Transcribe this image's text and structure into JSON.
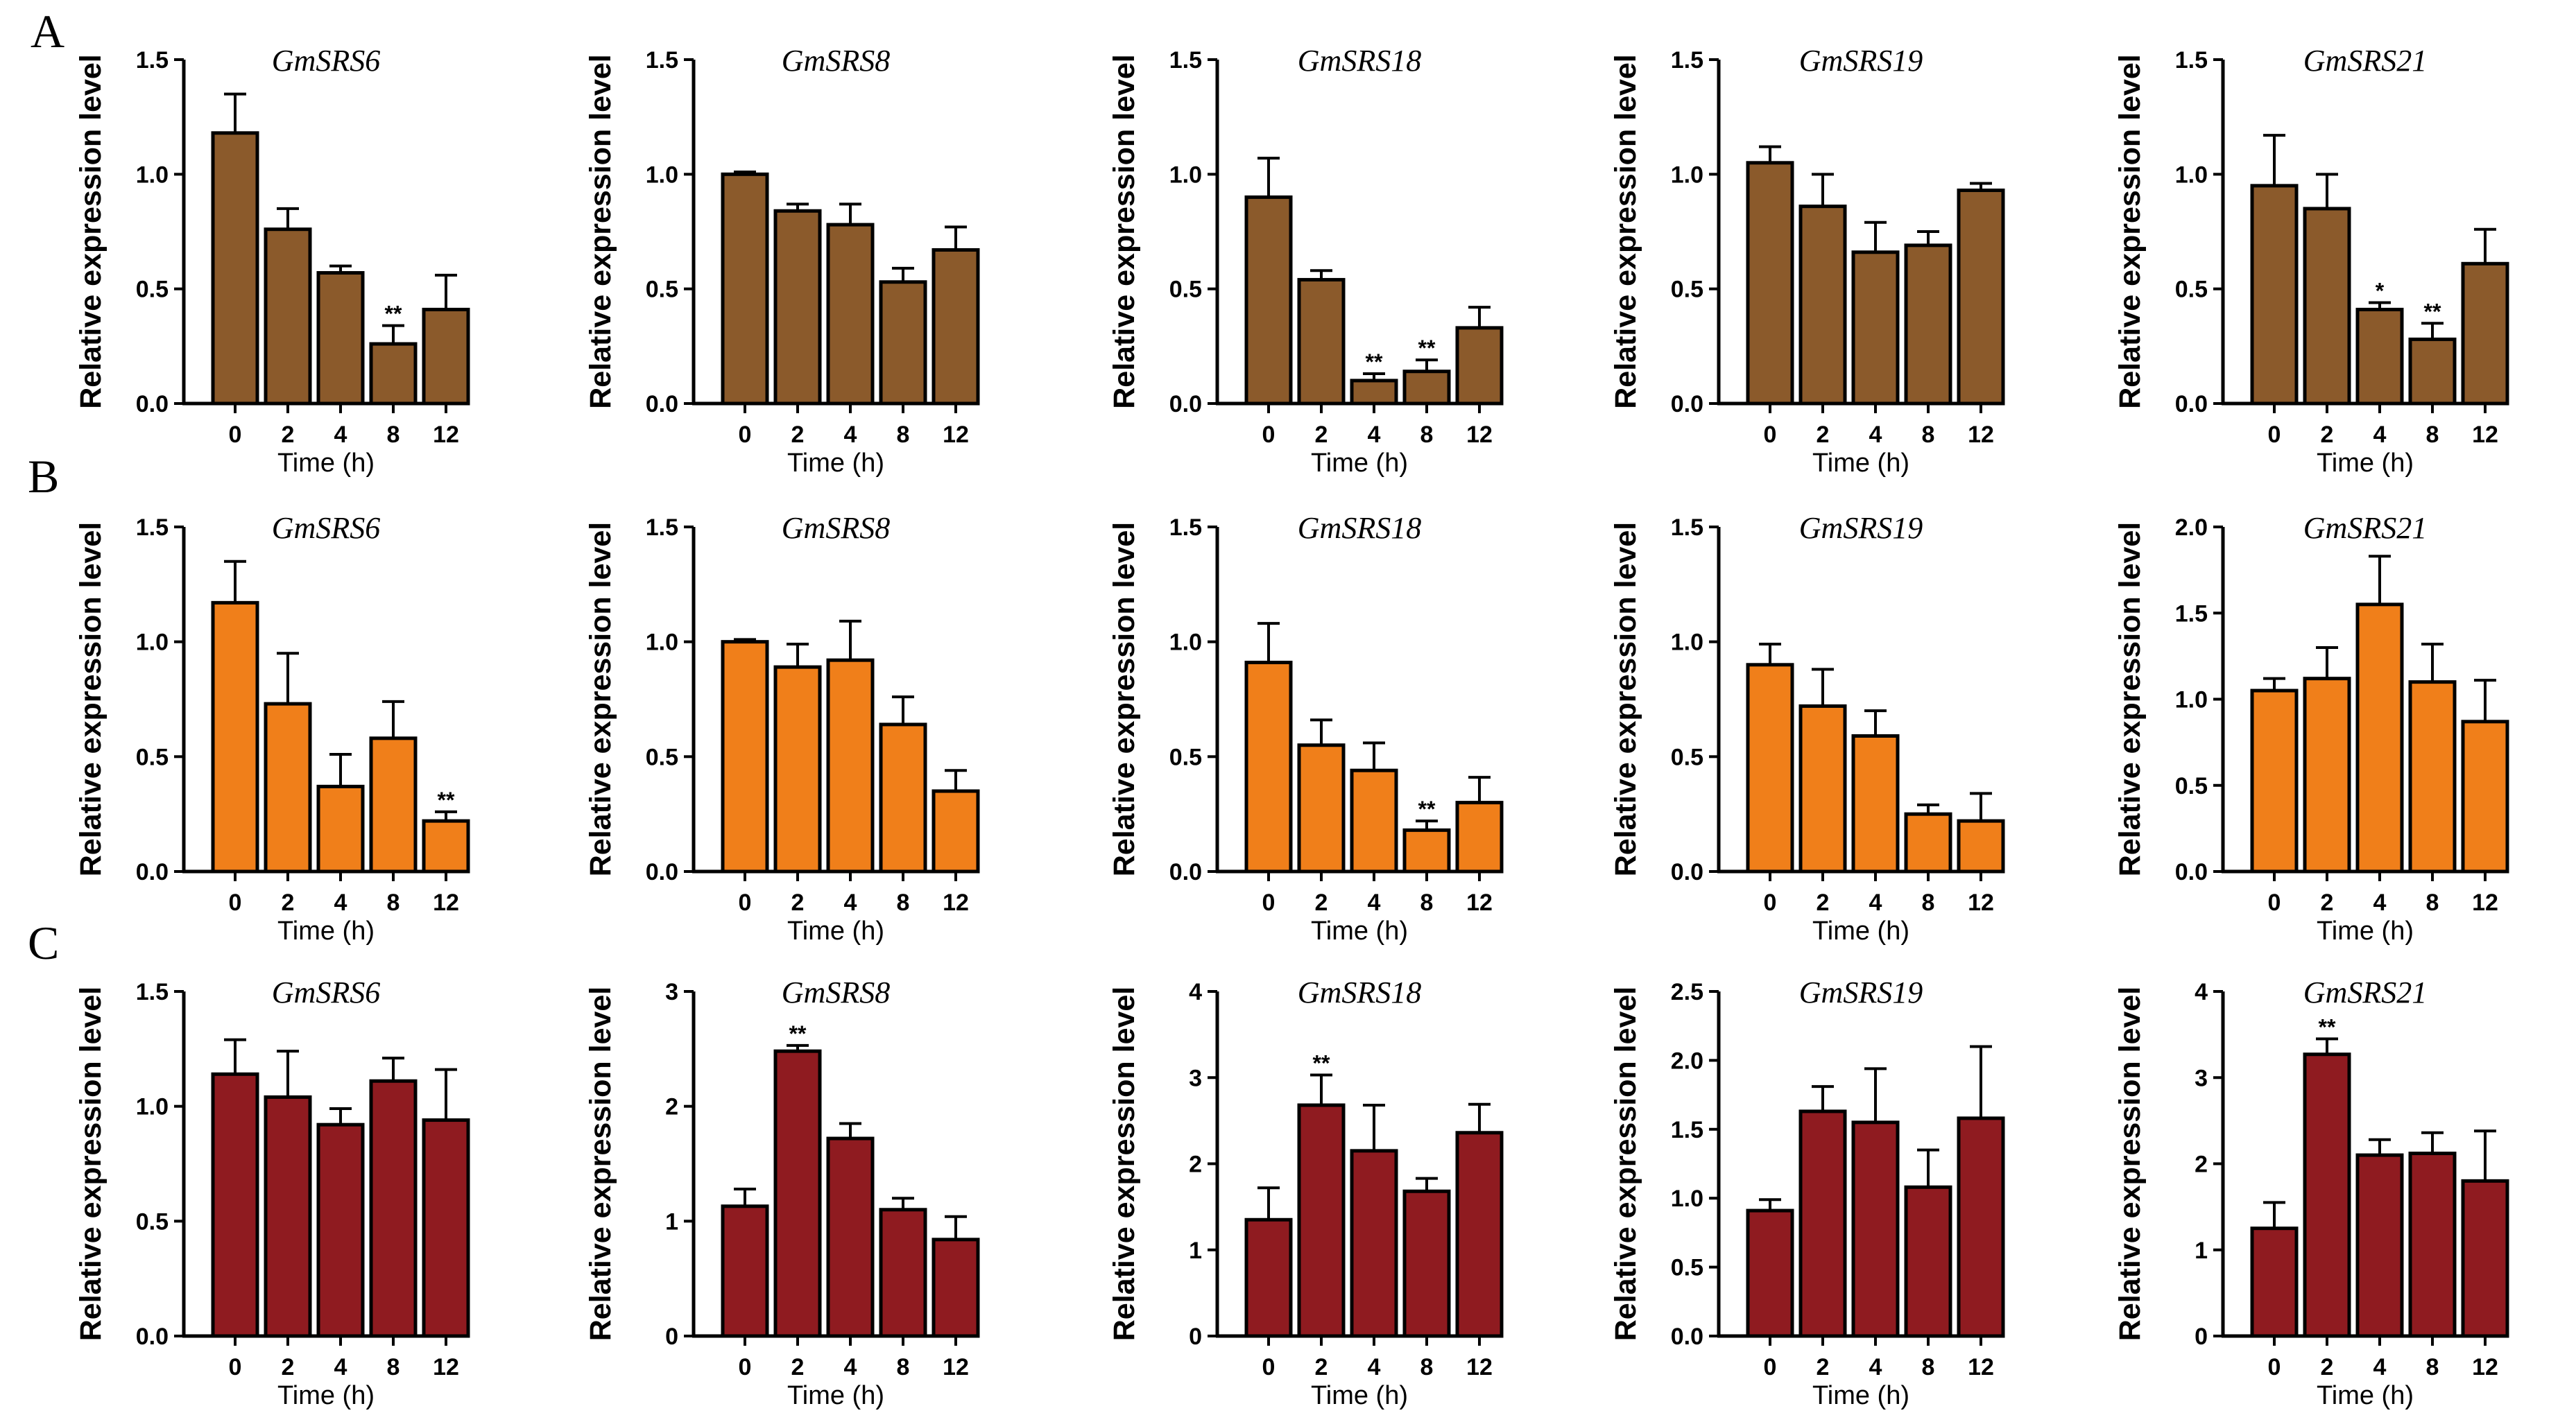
{
  "figure": {
    "panels": [
      "A",
      "B",
      "C"
    ],
    "colors": {
      "A": "#8B5A2B",
      "B": "#F07F1A",
      "C": "#8F1B20"
    }
  },
  "chart_data": [
    {
      "type": "bar",
      "panel": "A",
      "title": "GmSRS6",
      "xlabel": "Time (h)",
      "ylabel": "Relative expression level",
      "categories": [
        "0",
        "2",
        "4",
        "8",
        "12"
      ],
      "values": [
        1.18,
        0.76,
        0.57,
        0.26,
        0.41
      ],
      "errors": [
        0.17,
        0.09,
        0.03,
        0.08,
        0.15
      ],
      "significance": [
        "",
        "",
        "",
        "**",
        ""
      ],
      "ylim": [
        0,
        1.5
      ],
      "yticks": [
        "0.0",
        "0.5",
        "1.0",
        "1.5"
      ]
    },
    {
      "type": "bar",
      "panel": "A",
      "title": "GmSRS8",
      "xlabel": "Time (h)",
      "ylabel": "Relative expression level",
      "categories": [
        "0",
        "2",
        "4",
        "8",
        "12"
      ],
      "values": [
        1.0,
        0.84,
        0.78,
        0.53,
        0.67
      ],
      "errors": [
        0.01,
        0.03,
        0.09,
        0.06,
        0.1
      ],
      "significance": [
        "",
        "",
        "",
        "",
        ""
      ],
      "ylim": [
        0,
        1.5
      ],
      "yticks": [
        "0.0",
        "0.5",
        "1.0",
        "1.5"
      ]
    },
    {
      "type": "bar",
      "panel": "A",
      "title": "GmSRS18",
      "xlabel": "Time (h)",
      "ylabel": "Relative expression level",
      "categories": [
        "0",
        "2",
        "4",
        "8",
        "12"
      ],
      "values": [
        0.9,
        0.54,
        0.1,
        0.14,
        0.33
      ],
      "errors": [
        0.17,
        0.04,
        0.03,
        0.05,
        0.09
      ],
      "significance": [
        "",
        "",
        "**",
        "**",
        ""
      ],
      "ylim": [
        0,
        1.5
      ],
      "yticks": [
        "0.0",
        "0.5",
        "1.0",
        "1.5"
      ]
    },
    {
      "type": "bar",
      "panel": "A",
      "title": "GmSRS19",
      "xlabel": "Time (h)",
      "ylabel": "Relative expression level",
      "categories": [
        "0",
        "2",
        "4",
        "8",
        "12"
      ],
      "values": [
        1.05,
        0.86,
        0.66,
        0.69,
        0.93
      ],
      "errors": [
        0.07,
        0.14,
        0.13,
        0.06,
        0.03
      ],
      "significance": [
        "",
        "",
        "",
        "",
        ""
      ],
      "ylim": [
        0,
        1.5
      ],
      "yticks": [
        "0.0",
        "0.5",
        "1.0",
        "1.5"
      ]
    },
    {
      "type": "bar",
      "panel": "A",
      "title": "GmSRS21",
      "xlabel": "Time (h)",
      "ylabel": "Relative expression level",
      "categories": [
        "0",
        "2",
        "4",
        "8",
        "12"
      ],
      "values": [
        0.95,
        0.85,
        0.41,
        0.28,
        0.61
      ],
      "errors": [
        0.22,
        0.15,
        0.03,
        0.07,
        0.15
      ],
      "significance": [
        "",
        "",
        "*",
        "**",
        ""
      ],
      "ylim": [
        0,
        1.5
      ],
      "yticks": [
        "0.0",
        "0.5",
        "1.0",
        "1.5"
      ]
    },
    {
      "type": "bar",
      "panel": "B",
      "title": "GmSRS6",
      "xlabel": "Time (h)",
      "ylabel": "Relative expression level",
      "categories": [
        "0",
        "2",
        "4",
        "8",
        "12"
      ],
      "values": [
        1.17,
        0.73,
        0.37,
        0.58,
        0.22
      ],
      "errors": [
        0.18,
        0.22,
        0.14,
        0.16,
        0.04
      ],
      "significance": [
        "",
        "",
        "",
        "",
        "**"
      ],
      "ylim": [
        0,
        1.5
      ],
      "yticks": [
        "0.0",
        "0.5",
        "1.0",
        "1.5"
      ]
    },
    {
      "type": "bar",
      "panel": "B",
      "title": "GmSRS8",
      "xlabel": "Time (h)",
      "ylabel": "Relative expression level",
      "categories": [
        "0",
        "2",
        "4",
        "8",
        "12"
      ],
      "values": [
        1.0,
        0.89,
        0.92,
        0.64,
        0.35
      ],
      "errors": [
        0.01,
        0.1,
        0.17,
        0.12,
        0.09
      ],
      "significance": [
        "",
        "",
        "",
        "",
        ""
      ],
      "ylim": [
        0,
        1.5
      ],
      "yticks": [
        "0.0",
        "0.5",
        "1.0",
        "1.5"
      ]
    },
    {
      "type": "bar",
      "panel": "B",
      "title": "GmSRS18",
      "xlabel": "Time (h)",
      "ylabel": "Relative expression level",
      "categories": [
        "0",
        "2",
        "4",
        "8",
        "12"
      ],
      "values": [
        0.91,
        0.55,
        0.44,
        0.18,
        0.3
      ],
      "errors": [
        0.17,
        0.11,
        0.12,
        0.04,
        0.11
      ],
      "significance": [
        "",
        "",
        "",
        "**",
        ""
      ],
      "ylim": [
        0,
        1.5
      ],
      "yticks": [
        "0.0",
        "0.5",
        "1.0",
        "1.5"
      ]
    },
    {
      "type": "bar",
      "panel": "B",
      "title": "GmSRS19",
      "xlabel": "Time (h)",
      "ylabel": "Relative expression level",
      "categories": [
        "0",
        "2",
        "4",
        "8",
        "12"
      ],
      "values": [
        0.9,
        0.72,
        0.59,
        0.25,
        0.22
      ],
      "errors": [
        0.09,
        0.16,
        0.11,
        0.04,
        0.12
      ],
      "significance": [
        "",
        "",
        "",
        "",
        ""
      ],
      "ylim": [
        0,
        1.5
      ],
      "yticks": [
        "0.0",
        "0.5",
        "1.0",
        "1.5"
      ]
    },
    {
      "type": "bar",
      "panel": "B",
      "title": "GmSRS21",
      "xlabel": "Time (h)",
      "ylabel": "Relative expression level",
      "categories": [
        "0",
        "2",
        "4",
        "8",
        "12"
      ],
      "values": [
        1.05,
        1.12,
        1.55,
        1.1,
        0.87
      ],
      "errors": [
        0.07,
        0.18,
        0.28,
        0.22,
        0.24
      ],
      "significance": [
        "",
        "",
        "",
        "",
        ""
      ],
      "ylim": [
        0,
        2.0
      ],
      "yticks": [
        "0.0",
        "0.5",
        "1.0",
        "1.5",
        "2.0"
      ]
    },
    {
      "type": "bar",
      "panel": "C",
      "title": "GmSRS6",
      "xlabel": "Time (h)",
      "ylabel": "Relative expression level",
      "categories": [
        "0",
        "2",
        "4",
        "8",
        "12"
      ],
      "values": [
        1.14,
        1.04,
        0.92,
        1.11,
        0.94
      ],
      "errors": [
        0.15,
        0.2,
        0.07,
        0.1,
        0.22
      ],
      "significance": [
        "",
        "",
        "",
        "",
        ""
      ],
      "ylim": [
        0,
        1.5
      ],
      "yticks": [
        "0.0",
        "0.5",
        "1.0",
        "1.5"
      ]
    },
    {
      "type": "bar",
      "panel": "C",
      "title": "GmSRS8",
      "xlabel": "Time (h)",
      "ylabel": "Relative expression level",
      "categories": [
        "0",
        "2",
        "4",
        "8",
        "12"
      ],
      "values": [
        1.13,
        2.48,
        1.72,
        1.1,
        0.84
      ],
      "errors": [
        0.15,
        0.05,
        0.13,
        0.1,
        0.2
      ],
      "significance": [
        "",
        "**",
        "",
        "",
        ""
      ],
      "ylim": [
        0,
        3
      ],
      "yticks": [
        "0",
        "1",
        "2",
        "3"
      ]
    },
    {
      "type": "bar",
      "panel": "C",
      "title": "GmSRS18",
      "xlabel": "Time (h)",
      "ylabel": "Relative expression level",
      "categories": [
        "0",
        "2",
        "4",
        "8",
        "12"
      ],
      "values": [
        1.35,
        2.68,
        2.15,
        1.68,
        2.36
      ],
      "errors": [
        0.37,
        0.35,
        0.53,
        0.15,
        0.33
      ],
      "significance": [
        "",
        "**",
        "",
        "",
        ""
      ],
      "ylim": [
        0,
        4
      ],
      "yticks": [
        "0",
        "1",
        "2",
        "3",
        "4"
      ]
    },
    {
      "type": "bar",
      "panel": "C",
      "title": "GmSRS19",
      "xlabel": "Time (h)",
      "ylabel": "Relative expression level",
      "categories": [
        "0",
        "2",
        "4",
        "8",
        "12"
      ],
      "values": [
        0.91,
        1.63,
        1.55,
        1.08,
        1.58
      ],
      "errors": [
        0.08,
        0.18,
        0.39,
        0.27,
        0.52
      ],
      "significance": [
        "",
        "",
        "",
        "",
        ""
      ],
      "ylim": [
        0,
        2.5
      ],
      "yticks": [
        "0.0",
        "0.5",
        "1.0",
        "1.5",
        "2.0",
        "2.5"
      ]
    },
    {
      "type": "bar",
      "panel": "C",
      "title": "GmSRS21",
      "xlabel": "Time (h)",
      "ylabel": "Relative expression level",
      "categories": [
        "0",
        "2",
        "4",
        "8",
        "12"
      ],
      "values": [
        1.25,
        3.27,
        2.1,
        2.12,
        1.8
      ],
      "errors": [
        0.3,
        0.18,
        0.18,
        0.24,
        0.58
      ],
      "significance": [
        "",
        "**",
        "",
        "",
        ""
      ],
      "ylim": [
        0,
        4
      ],
      "yticks": [
        "0",
        "1",
        "2",
        "3",
        "4"
      ]
    }
  ]
}
